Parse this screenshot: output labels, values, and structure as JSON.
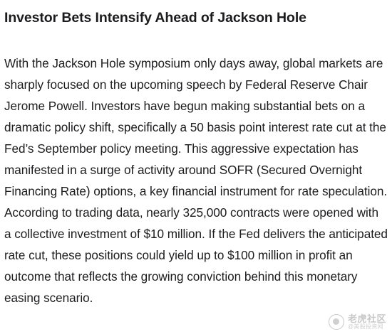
{
  "article": {
    "headline": "Investor Bets Intensify Ahead of Jackson Hole",
    "body": "With the Jackson Hole symposium only days away, global markets are sharply focused on the upcoming speech by Federal Reserve Chair Jerome Powell. Investors have begun making substantial bets on a dramatic policy shift, specifically a 50 basis point interest rate cut at the Fed’s September policy meeting. This aggressive expectation has manifested in a surge of activity around SOFR (Secured Overnight Financing Rate) options, a key financial instrument for rate speculation. According to trading data, nearly 325,000 contracts were opened with a collective investment of $10 million. If the Fed delivers the anticipated rate cut, these positions could yield up to $100 million in profit an outcome that reflects the growing conviction behind this monetary easing scenario."
  },
  "watermark": {
    "name": "老虎社区",
    "sub": "@美股投资网"
  }
}
